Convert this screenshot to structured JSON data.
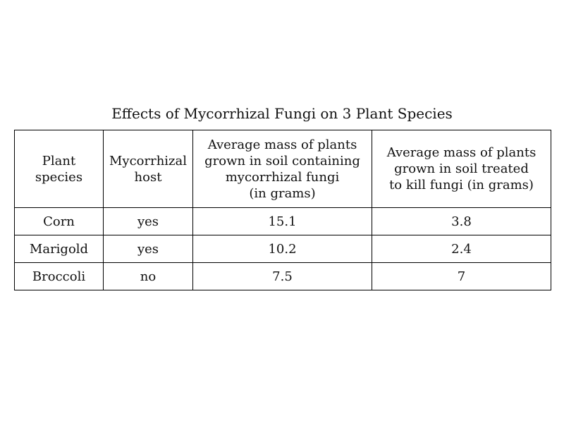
{
  "chart_data": {
    "type": "table",
    "title": "Effects of Mycorrhizal Fungi on 3 Plant Species",
    "columns": [
      "Plant\nspecies",
      "Mycorrhizal\nhost",
      "Average mass of plants\ngrown in soil containing\nmycorrhizal fungi\n(in grams)",
      "Average mass of plants\ngrown in soil treated\nto kill fungi (in grams)"
    ],
    "rows": [
      [
        "Corn",
        "yes",
        "15.1",
        "3.8"
      ],
      [
        "Marigold",
        "yes",
        "10.2",
        "2.4"
      ],
      [
        "Broccoli",
        "no",
        "7.5",
        "7"
      ]
    ]
  }
}
